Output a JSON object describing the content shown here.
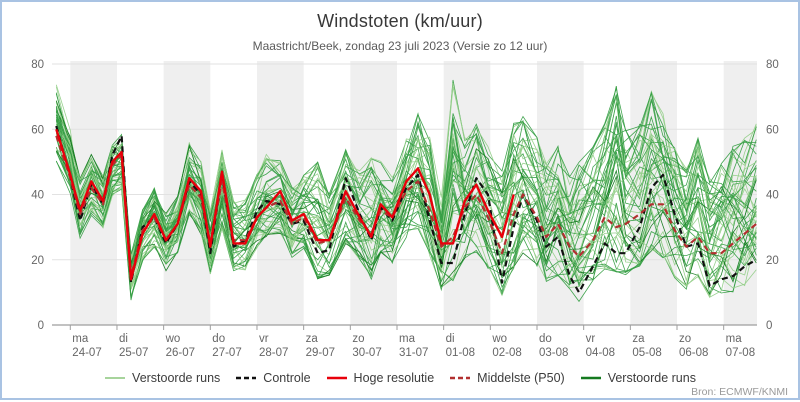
{
  "window": {
    "title": "Windstoten (km/uur)",
    "subtitle": "Maastricht/Beek, zondag 23 juli 2023 (Versie zo 12 uur)",
    "source": "Bron: ECMWF/KNMI"
  },
  "colors": {
    "frame_border": "#a9c3e3",
    "background": "#ffffff",
    "day_band": "#efefef",
    "gridline": "#e2e2e2",
    "axis": "#9e9e9e",
    "tick_text": "#666666",
    "title_text": "#383838",
    "subtitle_text": "#5b5b5b",
    "source_text": "#9a9a9a",
    "ensemble_green": "#379f46",
    "ensemble_light_green": "#93cf89",
    "ensemble_dark_green": "#157a20",
    "control_black": "#111111",
    "hres_red": "#e8000b",
    "p50_darkred": "#b23030"
  },
  "legend": {
    "items": [
      {
        "label": "Verstoorde runs",
        "color": "#a7d49c",
        "dash": "",
        "width": 2
      },
      {
        "label": "Controle",
        "color": "#111111",
        "dash": "5 3",
        "width": 2.5
      },
      {
        "label": "Hoge resolutie",
        "color": "#e8000b",
        "dash": "",
        "width": 2.5
      },
      {
        "label": "Middelste (P50)",
        "color": "#b23030",
        "dash": "5 3",
        "width": 2.5
      },
      {
        "label": "Verstoorde runs",
        "color": "#157a20",
        "dash": "",
        "width": 2.5
      }
    ]
  },
  "chart_data": {
    "type": "line",
    "title": "Windstoten (km/uur)",
    "subtitle": "Maastricht/Beek, zondag 23 juli 2023 (Versie zo 12 uur)",
    "ylabel": "km/uur",
    "ylim": [
      0,
      80
    ],
    "yticks": [
      0,
      20,
      40,
      60,
      80
    ],
    "y_axis_sides": [
      "left",
      "right"
    ],
    "grid": "horizontal",
    "shaded_bands": "alternate day bands, grey starting 24-07",
    "legend_position": "bottom-center",
    "x_unit_days_from": "2023-07-24 00:00",
    "x_labels": [
      {
        "day": "ma",
        "date": "24-07"
      },
      {
        "day": "di",
        "date": "25-07"
      },
      {
        "day": "wo",
        "date": "26-07"
      },
      {
        "day": "do",
        "date": "27-07"
      },
      {
        "day": "vr",
        "date": "28-07"
      },
      {
        "day": "za",
        "date": "29-07"
      },
      {
        "day": "zo",
        "date": "30-07"
      },
      {
        "day": "ma",
        "date": "31-07"
      },
      {
        "day": "di",
        "date": "01-08"
      },
      {
        "day": "wo",
        "date": "02-08"
      },
      {
        "day": "do",
        "date": "03-08"
      },
      {
        "day": "vr",
        "date": "04-08"
      },
      {
        "day": "za",
        "date": "05-08"
      },
      {
        "day": "zo",
        "date": "06-08"
      },
      {
        "day": "ma",
        "date": "07-08"
      }
    ],
    "t": [
      -0.3,
      0,
      0.21,
      0.45,
      0.7,
      0.9,
      1.1,
      1.3,
      1.55,
      1.8,
      2.05,
      2.3,
      2.55,
      2.8,
      3.0,
      3.25,
      3.5,
      3.75,
      4.0,
      4.2,
      4.5,
      4.75,
      5.0,
      5.3,
      5.55,
      5.9,
      6.2,
      6.45,
      6.65,
      6.9,
      7.2,
      7.45,
      7.7,
      7.95,
      8.2,
      8.45,
      8.7,
      8.95,
      9.25,
      9.5,
      9.7,
      10.0,
      10.2,
      10.45,
      10.7,
      10.9,
      11.2,
      11.45,
      11.7,
      11.9,
      12.2,
      12.45,
      12.7,
      12.95,
      13.2,
      13.45,
      13.7,
      13.95,
      14.2,
      14.45,
      14.7
    ],
    "series": [
      {
        "name": "Controle",
        "color": "#111111",
        "style": "dashed",
        "values": [
          61,
          45,
          32,
          43,
          37,
          52,
          58,
          13,
          30,
          33,
          25,
          31,
          44,
          40,
          22,
          46,
          24,
          26,
          35,
          38,
          37,
          31,
          32,
          22,
          23,
          45,
          34,
          26,
          36,
          32,
          42,
          46,
          32,
          19,
          19,
          34,
          45,
          40,
          13,
          30,
          40,
          32,
          24,
          27,
          15,
          10,
          18,
          25,
          22,
          22,
          30,
          42,
          46,
          34,
          24,
          25,
          12,
          14,
          15,
          18,
          20
        ]
      },
      {
        "name": "Middelste (P50)",
        "color": "#b23030",
        "style": "dashed",
        "values": [
          58,
          45,
          34,
          42,
          37,
          49,
          52,
          15,
          29,
          33,
          26,
          31,
          43,
          39,
          25,
          44,
          26,
          26,
          33,
          36,
          38,
          31,
          33,
          25,
          26,
          39,
          32,
          28,
          35,
          33,
          41,
          44,
          35,
          24,
          27,
          36,
          40,
          33,
          22,
          34,
          40,
          33,
          27,
          31,
          24,
          21,
          26,
          33,
          30,
          31,
          34,
          37,
          37,
          29,
          24,
          27,
          22,
          22,
          25,
          28,
          31
        ]
      },
      {
        "name": "Hoge resolutie",
        "color": "#e8000b",
        "style": "solid",
        "values": [
          60,
          46,
          35,
          44,
          38,
          50,
          53,
          14,
          28,
          34,
          26,
          31,
          45,
          41,
          24,
          47,
          25,
          25,
          33,
          36,
          41,
          32,
          34,
          26,
          26,
          41,
          33,
          27,
          37,
          33,
          44,
          48,
          40,
          25,
          25,
          38,
          43,
          35,
          27,
          40,
          null,
          null,
          null,
          null,
          null,
          null,
          null,
          null,
          null,
          null,
          null,
          null,
          null,
          null,
          null,
          null,
          null,
          null,
          null,
          null,
          null
        ]
      }
    ],
    "ensemble": {
      "name": "Verstoorde runs",
      "member_count": 50,
      "envelope_min": [
        50,
        40,
        27,
        34,
        30,
        40,
        42,
        8,
        20,
        24,
        17,
        22,
        34,
        28,
        16,
        30,
        17,
        17,
        24,
        27,
        28,
        21,
        23,
        14,
        15,
        25,
        20,
        14,
        22,
        19,
        27,
        29,
        21,
        11,
        13,
        20,
        22,
        17,
        9,
        17,
        22,
        17,
        13,
        15,
        9,
        7,
        13,
        17,
        15,
        15,
        18,
        22,
        20,
        14,
        11,
        14,
        8,
        9,
        10,
        11,
        12
      ],
      "envelope_max": [
        74,
        60,
        45,
        52,
        46,
        56,
        58,
        22,
        36,
        42,
        34,
        40,
        56,
        50,
        35,
        55,
        38,
        38,
        46,
        52,
        50,
        42,
        46,
        50,
        40,
        54,
        47,
        52,
        50,
        45,
        57,
        66,
        58,
        40,
        76,
        58,
        62,
        55,
        48,
        62,
        64,
        58,
        50,
        55,
        46,
        50,
        55,
        62,
        74,
        60,
        62,
        72,
        65,
        55,
        48,
        58,
        45,
        50,
        55,
        58,
        62
      ]
    }
  }
}
